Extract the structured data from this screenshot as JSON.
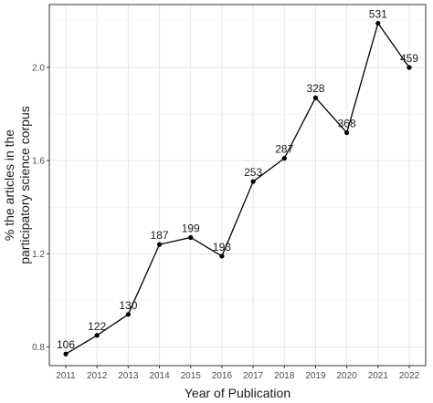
{
  "chart_data": {
    "type": "line",
    "title": "",
    "xlabel": "Year of Publication",
    "ylabel_lines": [
      "% the articles in the",
      "participatory science corpus"
    ],
    "x": [
      "2011",
      "2012",
      "2013",
      "2014",
      "2015",
      "2016",
      "2017",
      "2018",
      "2019",
      "2020",
      "2021",
      "2022"
    ],
    "values": [
      0.77,
      0.85,
      0.94,
      1.24,
      1.27,
      1.19,
      1.51,
      1.61,
      1.87,
      1.72,
      2.19,
      2.0
    ],
    "labels": [
      "106",
      "122",
      "130",
      "187",
      "199",
      "193",
      "253",
      "287",
      "328",
      "368",
      "531",
      "459"
    ],
    "y_ticks": [
      "0.8",
      "1.2",
      "1.6",
      "2.0"
    ],
    "ylim": [
      0.72,
      2.27
    ],
    "grid": true,
    "legend": "none",
    "colors": {
      "line": "#000000",
      "point": "#000000",
      "grid": "#e5e5e5",
      "panel_border": "#333333"
    }
  }
}
